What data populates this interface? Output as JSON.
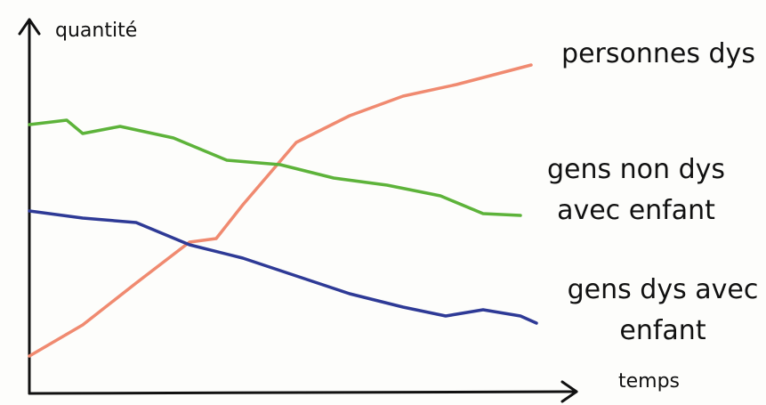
{
  "chart_data": {
    "type": "line",
    "x_label": "temps",
    "y_label": "quantité",
    "xlim": [
      0,
      100
    ],
    "ylim": [
      0,
      100
    ],
    "series": [
      {
        "name": "personnes dys",
        "color": "#f08a70",
        "x": [
          0,
          10,
          20,
          30,
          35,
          40,
          50,
          60,
          70,
          80,
          94
        ],
        "values": [
          10,
          18.75,
          30.5,
          42,
          43,
          52.5,
          70,
          77.5,
          83,
          86.25,
          91.75
        ]
      },
      {
        "name": "gens non dys avec enfant",
        "color": "#5db33a",
        "x": [
          0,
          7,
          10,
          17,
          27,
          37,
          47,
          57,
          67,
          77,
          85,
          92
        ],
        "values": [
          75,
          76.25,
          72.5,
          74.5,
          71.25,
          65,
          63.75,
          60,
          58,
          55,
          50,
          49.5
        ]
      },
      {
        "name": "gens dys avec enfant",
        "color": "#2e3a96",
        "x": [
          0,
          10,
          20,
          30,
          40,
          50,
          60,
          70,
          78,
          85,
          92,
          95
        ],
        "values": [
          50.75,
          48.75,
          47.5,
          41.25,
          37.5,
          32.5,
          27.5,
          23.75,
          21.25,
          23,
          21.25,
          19.25
        ]
      }
    ]
  }
}
